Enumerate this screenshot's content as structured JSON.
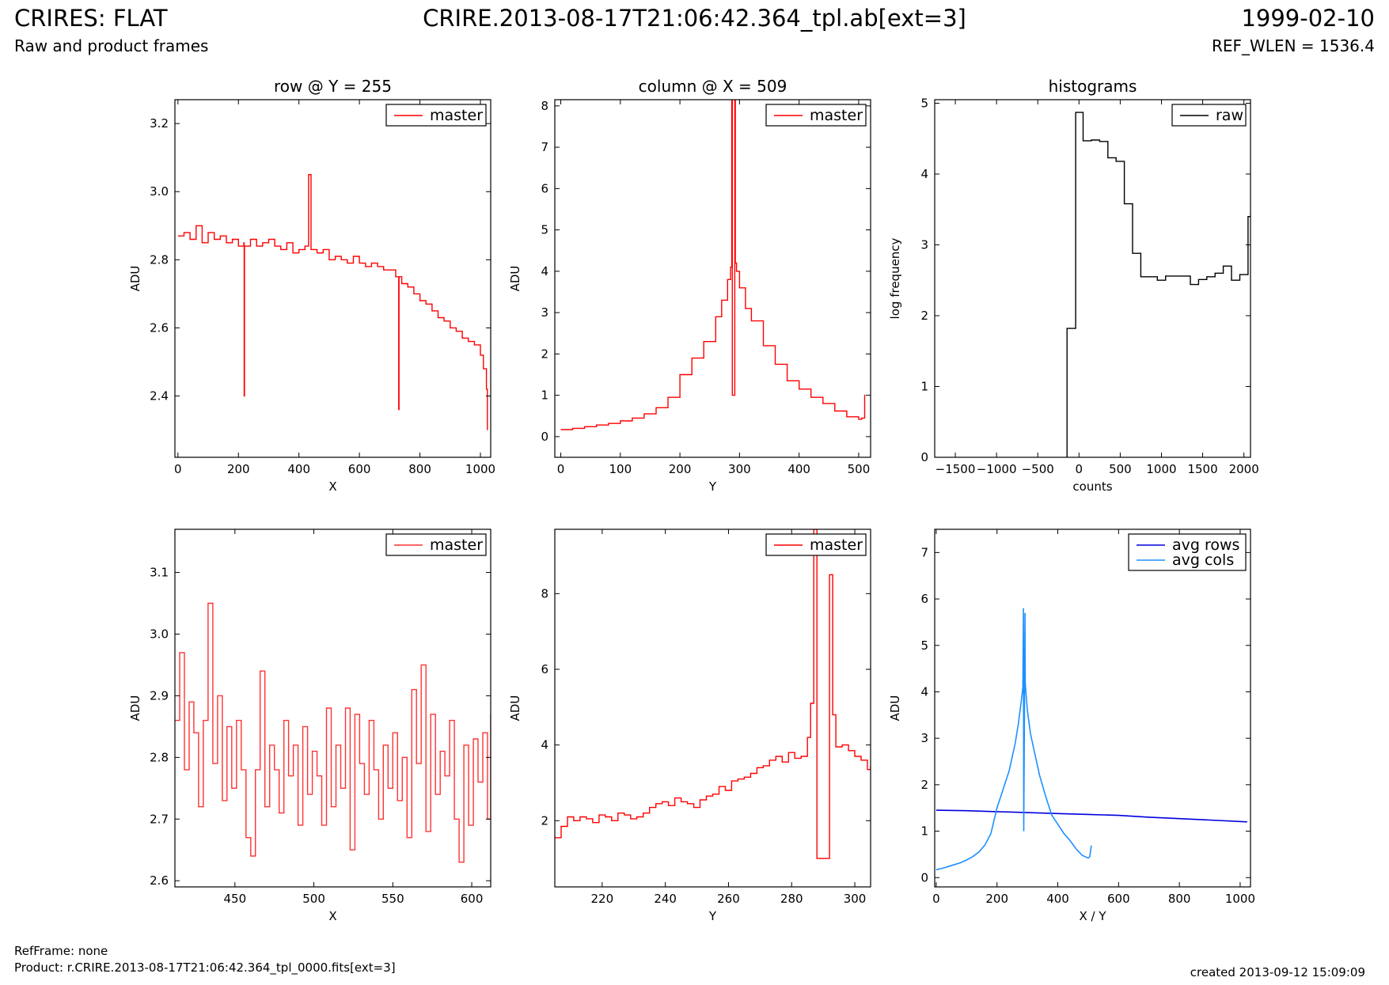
{
  "header": {
    "title": "CRIRES: FLAT",
    "subtitle": "Raw and product frames",
    "file": "CRIRE.2013-08-17T21:06:42.364_tpl.ab[ext=3]",
    "date": "1999-02-10",
    "ref_wlen": "REF_WLEN = 1536.4"
  },
  "footer": {
    "refframe": "RefFrame: none",
    "product": "Product: r.CRIRE.2013-08-17T21:06:42.364_tpl_0000.fits[ext=3]",
    "created": "created 2013-09-12 15:09:09"
  },
  "colors": {
    "master": "#ff0000",
    "raw": "#000000",
    "avg_rows": "#0000dd",
    "avg_cols": "#1e90ff"
  },
  "chart_data": [
    {
      "id": "row_full",
      "type": "line",
      "title": "row @ Y = 255",
      "xlabel": "X",
      "ylabel": "ADU",
      "xlim": [
        -10,
        1034
      ],
      "ylim": [
        2.22,
        3.27
      ],
      "xticks": [
        0,
        200,
        400,
        600,
        800,
        1000
      ],
      "yticks": [
        2.4,
        2.6,
        2.8,
        3.0,
        3.2
      ],
      "ytick_labels": [
        "2.4",
        "2.6",
        "2.8",
        "3.0",
        "3.2"
      ],
      "legend": "top-right",
      "series": [
        {
          "name": "master",
          "color": "#ff0000",
          "step": true,
          "x": [
            0,
            20,
            40,
            60,
            80,
            100,
            120,
            140,
            160,
            180,
            200,
            218,
            219,
            220,
            240,
            260,
            280,
            300,
            320,
            340,
            360,
            380,
            400,
            420,
            432,
            440,
            460,
            480,
            500,
            520,
            540,
            560,
            580,
            600,
            620,
            640,
            660,
            680,
            700,
            720,
            730,
            731,
            740,
            760,
            780,
            800,
            820,
            840,
            860,
            880,
            900,
            920,
            940,
            960,
            980,
            1000,
            1010,
            1020,
            1023
          ],
          "y": [
            2.87,
            2.88,
            2.86,
            2.9,
            2.85,
            2.88,
            2.86,
            2.87,
            2.85,
            2.86,
            2.84,
            2.85,
            2.4,
            2.84,
            2.86,
            2.84,
            2.85,
            2.86,
            2.84,
            2.83,
            2.85,
            2.82,
            2.83,
            2.84,
            3.05,
            2.83,
            2.82,
            2.83,
            2.8,
            2.81,
            2.8,
            2.79,
            2.81,
            2.79,
            2.78,
            2.79,
            2.78,
            2.77,
            2.77,
            2.75,
            2.36,
            2.75,
            2.73,
            2.72,
            2.7,
            2.68,
            2.67,
            2.65,
            2.63,
            2.62,
            2.6,
            2.59,
            2.57,
            2.56,
            2.55,
            2.52,
            2.48,
            2.42,
            2.3
          ]
        }
      ]
    },
    {
      "id": "col_full",
      "type": "line",
      "title": "column @ X = 509",
      "xlabel": "Y",
      "ylabel": "ADU",
      "xlim": [
        -10,
        520
      ],
      "ylim": [
        -0.5,
        8.15
      ],
      "xticks": [
        0,
        100,
        200,
        300,
        400,
        500
      ],
      "yticks": [
        0,
        1,
        2,
        3,
        4,
        5,
        6,
        7,
        8
      ],
      "ytick_labels": [
        "0",
        "1",
        "2",
        "3",
        "4",
        "5",
        "6",
        "7",
        "8"
      ],
      "legend": "top-right",
      "series": [
        {
          "name": "master",
          "color": "#ff0000",
          "step": true,
          "x": [
            0,
            20,
            40,
            60,
            80,
            100,
            120,
            140,
            160,
            180,
            200,
            220,
            240,
            260,
            270,
            280,
            285,
            287,
            288,
            292,
            293,
            295,
            300,
            310,
            320,
            340,
            360,
            380,
            400,
            420,
            440,
            460,
            480,
            500,
            505,
            510,
            511
          ],
          "y": [
            0.17,
            0.2,
            0.24,
            0.28,
            0.32,
            0.38,
            0.45,
            0.55,
            0.7,
            0.95,
            1.5,
            1.9,
            2.3,
            2.9,
            3.3,
            3.8,
            4.1,
            8.15,
            1.0,
            8.15,
            4.2,
            4.0,
            3.6,
            3.1,
            2.8,
            2.2,
            1.75,
            1.35,
            1.15,
            0.95,
            0.8,
            0.62,
            0.48,
            0.42,
            0.45,
            1.0,
            1.0
          ]
        }
      ]
    },
    {
      "id": "histograms",
      "type": "line",
      "title": "histograms",
      "xlabel": "counts",
      "ylabel": "log frequency",
      "xlim": [
        -1750,
        2080
      ],
      "ylim": [
        0,
        5.05
      ],
      "xticks": [
        -1500,
        -1000,
        -500,
        0,
        500,
        1000,
        1500,
        2000
      ],
      "yticks": [
        0,
        1,
        2,
        3,
        4,
        5
      ],
      "ytick_labels": [
        "0",
        "1",
        "2",
        "3",
        "4",
        "5"
      ],
      "legend": "top-right",
      "series": [
        {
          "name": "raw",
          "color": "#000000",
          "step": true,
          "x": [
            -145,
            -145,
            -40,
            50,
            150,
            250,
            350,
            450,
            550,
            650,
            750,
            850,
            950,
            1050,
            1150,
            1250,
            1350,
            1450,
            1550,
            1650,
            1750,
            1850,
            1950,
            2050,
            2080
          ],
          "y": [
            0,
            1.82,
            4.87,
            4.47,
            4.48,
            4.46,
            4.23,
            4.18,
            3.58,
            2.88,
            2.55,
            2.55,
            2.5,
            2.56,
            2.56,
            2.56,
            2.44,
            2.51,
            2.55,
            2.6,
            2.7,
            2.5,
            2.58,
            3.4,
            3.4
          ]
        }
      ]
    },
    {
      "id": "row_zoom",
      "type": "line",
      "title": "",
      "xlabel": "X",
      "ylabel": "ADU",
      "xlim": [
        412,
        612
      ],
      "ylim": [
        2.59,
        3.17
      ],
      "xticks": [
        450,
        500,
        550,
        600
      ],
      "yticks": [
        2.6,
        2.7,
        2.8,
        2.9,
        3.0,
        3.1
      ],
      "ytick_labels": [
        "2.6",
        "2.7",
        "2.8",
        "2.9",
        "3.0",
        "3.1"
      ],
      "legend": "top-right",
      "series": [
        {
          "name": "master",
          "color": "#ff3333",
          "step": true,
          "x": [
            412,
            415,
            418,
            421,
            424,
            427,
            430,
            433,
            436,
            439,
            442,
            445,
            448,
            451,
            454,
            457,
            460,
            463,
            466,
            469,
            472,
            475,
            478,
            481,
            484,
            487,
            490,
            493,
            496,
            499,
            502,
            505,
            508,
            511,
            514,
            517,
            520,
            523,
            526,
            529,
            532,
            535,
            538,
            541,
            544,
            547,
            550,
            553,
            556,
            559,
            562,
            565,
            568,
            571,
            574,
            577,
            580,
            583,
            586,
            589,
            592,
            595,
            598,
            601,
            604,
            607,
            610,
            612
          ],
          "y": [
            2.86,
            2.97,
            2.78,
            2.89,
            2.84,
            2.72,
            2.86,
            3.05,
            2.79,
            2.9,
            2.73,
            2.85,
            2.75,
            2.86,
            2.78,
            2.67,
            2.64,
            2.78,
            2.94,
            2.72,
            2.82,
            2.78,
            2.71,
            2.86,
            2.77,
            2.82,
            2.69,
            2.85,
            2.74,
            2.81,
            2.77,
            2.69,
            2.88,
            2.72,
            2.82,
            2.75,
            2.88,
            2.65,
            2.87,
            2.79,
            2.74,
            2.86,
            2.78,
            2.7,
            2.82,
            2.75,
            2.84,
            2.73,
            2.8,
            2.67,
            2.91,
            2.79,
            2.95,
            2.68,
            2.87,
            2.74,
            2.81,
            2.77,
            2.86,
            2.7,
            2.63,
            2.82,
            2.69,
            2.83,
            2.76,
            2.84,
            2.7,
            2.87
          ]
        }
      ]
    },
    {
      "id": "col_zoom",
      "type": "line",
      "title": "",
      "xlabel": "Y",
      "ylabel": "ADU",
      "xlim": [
        205,
        305
      ],
      "ylim": [
        0.25,
        9.7
      ],
      "xticks": [
        220,
        240,
        260,
        280,
        300
      ],
      "yticks": [
        2,
        4,
        6,
        8
      ],
      "ytick_labels": [
        "2",
        "4",
        "6",
        "8"
      ],
      "legend": "top-right",
      "series": [
        {
          "name": "master",
          "color": "#ff0000",
          "step": true,
          "x": [
            205,
            207,
            209,
            211,
            213,
            215,
            217,
            219,
            221,
            223,
            225,
            227,
            229,
            231,
            233,
            235,
            237,
            239,
            241,
            243,
            245,
            247,
            249,
            251,
            253,
            255,
            257,
            259,
            261,
            263,
            265,
            267,
            269,
            271,
            273,
            275,
            277,
            279,
            281,
            283,
            285,
            286,
            287,
            288,
            292,
            293,
            294,
            296,
            298,
            300,
            302,
            304,
            305
          ],
          "y": [
            1.55,
            1.85,
            2.1,
            2.0,
            2.1,
            2.05,
            1.95,
            2.15,
            2.1,
            2.0,
            2.2,
            2.15,
            2.05,
            2.1,
            2.2,
            2.35,
            2.45,
            2.5,
            2.4,
            2.6,
            2.5,
            2.45,
            2.35,
            2.55,
            2.65,
            2.7,
            2.9,
            2.8,
            3.05,
            3.1,
            3.15,
            3.25,
            3.4,
            3.45,
            3.6,
            3.7,
            3.55,
            3.8,
            3.65,
            3.7,
            4.2,
            5.1,
            9.7,
            1.0,
            8.5,
            4.8,
            3.95,
            4.0,
            3.85,
            3.7,
            3.6,
            3.35,
            3.45
          ]
        }
      ]
    },
    {
      "id": "averages",
      "type": "line",
      "title": "",
      "xlabel": "X / Y",
      "ylabel": "ADU",
      "xlim": [
        -5,
        1034
      ],
      "ylim": [
        -0.2,
        7.5
      ],
      "xticks": [
        0,
        200,
        400,
        600,
        800,
        1000
      ],
      "yticks": [
        0,
        1,
        2,
        3,
        4,
        5,
        6,
        7
      ],
      "ytick_labels": [
        "0",
        "1",
        "2",
        "3",
        "4",
        "5",
        "6",
        "7"
      ],
      "legend": "top-right",
      "series": [
        {
          "name": "avg rows",
          "color": "#0000dd",
          "step": false,
          "x": [
            0,
            100,
            200,
            300,
            400,
            500,
            600,
            700,
            800,
            900,
            1023
          ],
          "y": [
            1.45,
            1.44,
            1.42,
            1.4,
            1.38,
            1.36,
            1.34,
            1.3,
            1.27,
            1.24,
            1.2
          ]
        },
        {
          "name": "avg cols",
          "color": "#1e90ff",
          "step": false,
          "x": [
            0,
            20,
            40,
            60,
            80,
            100,
            120,
            140,
            160,
            180,
            200,
            220,
            240,
            260,
            270,
            280,
            285,
            287,
            288,
            292,
            293,
            295,
            300,
            310,
            320,
            340,
            360,
            380,
            400,
            420,
            440,
            460,
            480,
            500,
            505,
            510,
            511
          ],
          "y": [
            0.17,
            0.2,
            0.24,
            0.28,
            0.32,
            0.38,
            0.45,
            0.55,
            0.7,
            0.95,
            1.5,
            1.9,
            2.3,
            2.9,
            3.3,
            3.8,
            4.1,
            5.8,
            1.0,
            5.7,
            4.2,
            4.0,
            3.6,
            3.1,
            2.8,
            2.2,
            1.75,
            1.35,
            1.15,
            0.95,
            0.8,
            0.62,
            0.48,
            0.42,
            0.45,
            0.68,
            0.68
          ]
        }
      ]
    }
  ]
}
